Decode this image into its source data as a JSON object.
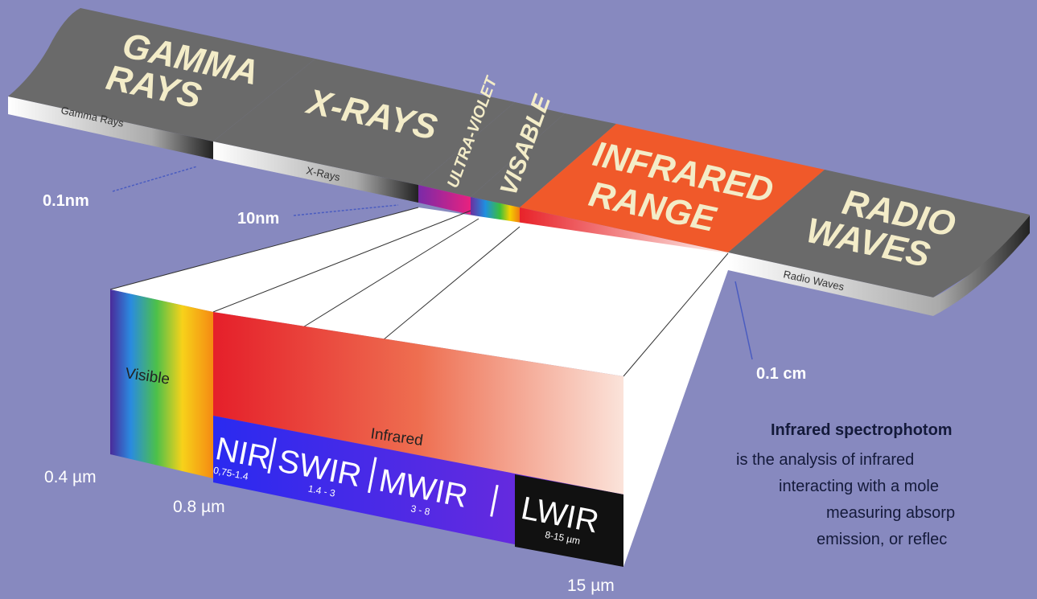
{
  "bands": [
    {
      "title": [
        "GAMMA",
        "RAYS"
      ],
      "caption": "Gamma Rays"
    },
    {
      "title": [
        "X-RAYS"
      ],
      "caption": "X-Rays"
    },
    {
      "title": [
        "ULTRA-VIOLET"
      ]
    },
    {
      "title": [
        "VISABLE"
      ]
    },
    {
      "title": [
        "INFRARED",
        "RANGE"
      ]
    },
    {
      "title": [
        "RADIO",
        "WAVES"
      ],
      "caption": "Radio Waves"
    }
  ],
  "markers": [
    "0.1nm",
    "10nm",
    "0.1 cm",
    "0.4 µm",
    "0.8 µm",
    "15 µm"
  ],
  "zoom": {
    "visible": "Visible",
    "infrared": "Infrared",
    "subbands": [
      {
        "name": "NIR",
        "range": "0,75-1.4"
      },
      {
        "name": "SWIR",
        "range": "1.4 - 3"
      },
      {
        "name": "MWIR",
        "range": "3 - 8"
      },
      {
        "name": "LWIR",
        "range": "8-15 µm"
      }
    ]
  },
  "note": {
    "title": "Infrared spectrophotom",
    "lines": [
      "is the analysis of infrared",
      "interacting with a mole",
      "measuring absorp",
      "emission, or reflec"
    ]
  }
}
